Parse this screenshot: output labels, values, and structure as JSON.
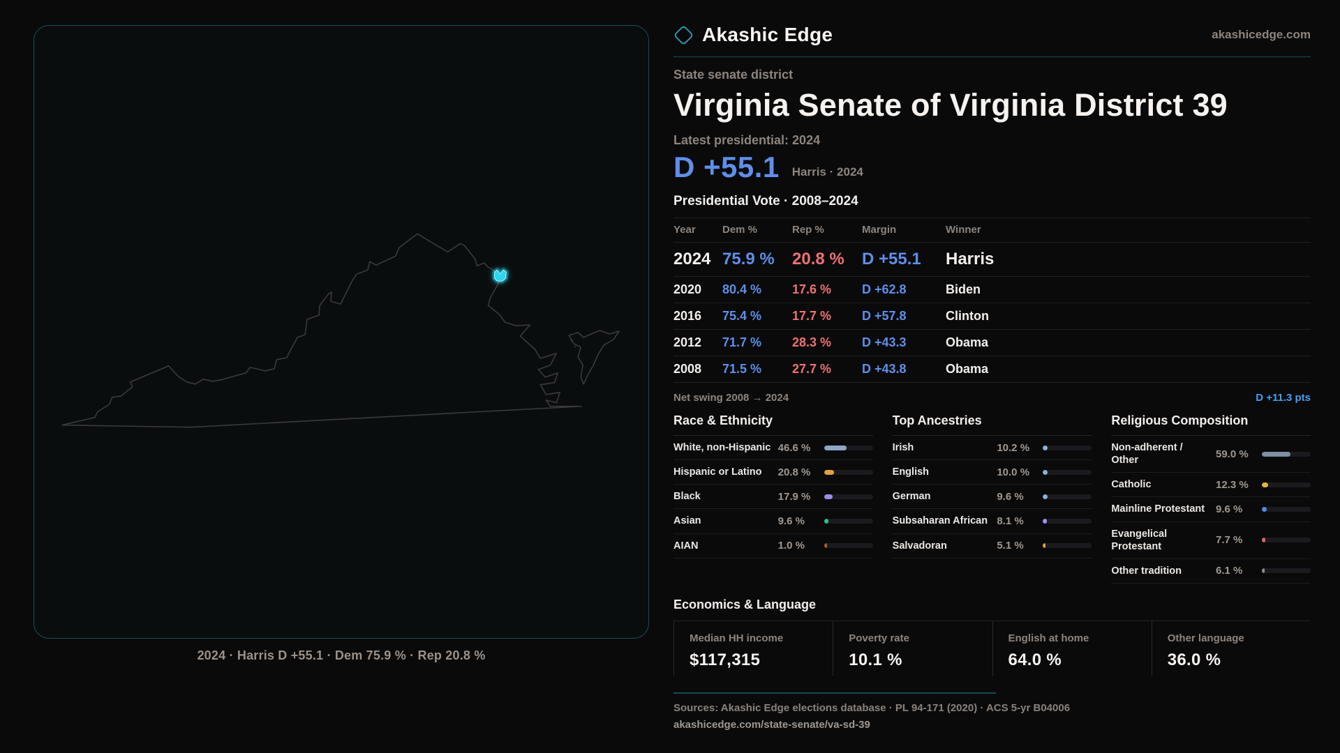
{
  "brand": {
    "name": "Akashic Edge",
    "domain": "akashicedge.com"
  },
  "header": {
    "kicker": "State senate district",
    "title": "Virginia Senate of Virginia District 39",
    "latest_label": "Latest presidential: 2024"
  },
  "headline": {
    "margin": "D +55.1",
    "sub": "Harris · 2024"
  },
  "vote_table": {
    "title": "Presidential Vote · 2008–2024",
    "columns": [
      "Year",
      "Dem %",
      "Rep %",
      "Margin",
      "Winner"
    ],
    "rows": [
      {
        "year": "2024",
        "dem": "75.9 %",
        "rep": "20.8 %",
        "margin": "D +55.1",
        "winner": "Harris",
        "featured": true
      },
      {
        "year": "2020",
        "dem": "80.4 %",
        "rep": "17.6 %",
        "margin": "D +62.8",
        "winner": "Biden",
        "featured": false
      },
      {
        "year": "2016",
        "dem": "75.4 %",
        "rep": "17.7 %",
        "margin": "D +57.8",
        "winner": "Clinton",
        "featured": false
      },
      {
        "year": "2012",
        "dem": "71.7 %",
        "rep": "28.3 %",
        "margin": "D +43.3",
        "winner": "Obama",
        "featured": false
      },
      {
        "year": "2008",
        "dem": "71.5 %",
        "rep": "27.7 %",
        "margin": "D +43.8",
        "winner": "Obama",
        "featured": false
      }
    ]
  },
  "swing": {
    "label": "Net swing 2008 → 2024",
    "value": "D +11.3 pts"
  },
  "demographics": [
    {
      "title": "Race & Ethnicity",
      "rows": [
        {
          "label": "White, non-Hispanic",
          "value": "46.6 %",
          "pct": 46.6,
          "color": "#8da7c5"
        },
        {
          "label": "Hispanic or Latino",
          "value": "20.8 %",
          "pct": 20.8,
          "color": "#e2a23b"
        },
        {
          "label": "Black",
          "value": "17.9 %",
          "pct": 17.9,
          "color": "#9c8cf0"
        },
        {
          "label": "Asian",
          "value": "9.6 %",
          "pct": 9.6,
          "color": "#2bc18f"
        },
        {
          "label": "AIAN",
          "value": "1.0 %",
          "pct": 1.0,
          "color": "#a85f28"
        }
      ]
    },
    {
      "title": "Top Ancestries",
      "rows": [
        {
          "label": "Irish",
          "value": "10.2 %",
          "pct": 10.2,
          "color": "#8fb2d8"
        },
        {
          "label": "English",
          "value": "10.0 %",
          "pct": 10.0,
          "color": "#8fb2d8"
        },
        {
          "label": "German",
          "value": "9.6 %",
          "pct": 9.6,
          "color": "#8fb2d8"
        },
        {
          "label": "Subsaharan African",
          "value": "8.1 %",
          "pct": 8.1,
          "color": "#9d95f5"
        },
        {
          "label": "Salvadoran",
          "value": "5.1 %",
          "pct": 5.1,
          "color": "#e2a23b"
        }
      ]
    },
    {
      "title": "Religious Composition",
      "rows": [
        {
          "label": "Non-adherent / Other",
          "value": "59.0 %",
          "pct": 59.0,
          "color": "#7e8ea3"
        },
        {
          "label": "Catholic",
          "value": "12.3 %",
          "pct": 12.3,
          "color": "#e3b53a"
        },
        {
          "label": "Mainline Protestant",
          "value": "9.6 %",
          "pct": 9.6,
          "color": "#4b8fe2"
        },
        {
          "label": "Evangelical Protestant",
          "value": "7.7 %",
          "pct": 7.7,
          "color": "#e16464"
        },
        {
          "label": "Other tradition",
          "value": "6.1 %",
          "pct": 6.1,
          "color": "#8b8e94"
        }
      ]
    }
  ],
  "economics": {
    "title": "Economics & Language",
    "stats": [
      {
        "label": "Median HH income",
        "value": "$117,315"
      },
      {
        "label": "Poverty rate",
        "value": "10.1 %"
      },
      {
        "label": "English at home",
        "value": "64.0 %"
      },
      {
        "label": "Other language",
        "value": "36.0 %"
      }
    ]
  },
  "footer": {
    "sources": "Sources: Akashic Edge elections database · PL 94-171 (2020) · ACS 5-yr B04006",
    "permalink": "akashicedge.com/state-senate/va-sd-39"
  },
  "map": {
    "caption": "2024 · Harris D +55.1 · Dem 75.9 % · Rep 20.8 %"
  },
  "colors": {
    "dem_blue": "#5f8fe8",
    "rep_red": "#ee7272",
    "accent_teal": "#17505c",
    "district_cyan": "#2fd4ef"
  }
}
